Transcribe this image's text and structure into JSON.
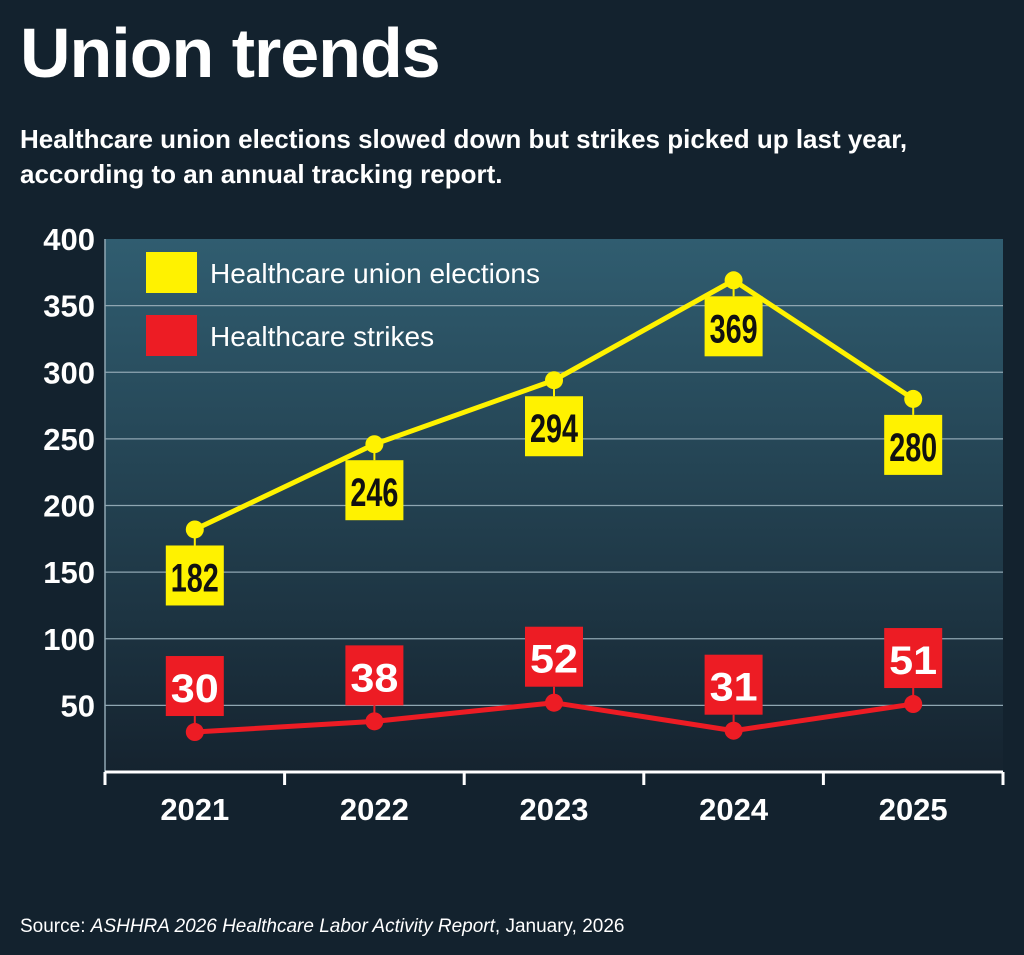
{
  "title": "Union trends",
  "subtitle": "Healthcare union elections slowed down but strikes picked up last year, according to an annual tracking report.",
  "source": {
    "prefix": "Source: ",
    "report": "ASHHRA 2026 Healthcare Labor Activity Report",
    "suffix": ", January, 2026"
  },
  "chart_data": {
    "type": "line",
    "title": "Union trends",
    "categories": [
      "2021",
      "2022",
      "2023",
      "2024",
      "2025"
    ],
    "ylim": [
      0,
      400
    ],
    "yticks": [
      50,
      100,
      150,
      200,
      250,
      300,
      350,
      400
    ],
    "grid": true,
    "legend_position": "top-left",
    "series": [
      {
        "name": "Healthcare union elections",
        "values": [
          182,
          246,
          294,
          369,
          280
        ],
        "color": "#fff200",
        "label_position": "below"
      },
      {
        "name": "Healthcare strikes",
        "values": [
          30,
          38,
          52,
          31,
          51
        ],
        "color": "#ed1c24",
        "label_position": "above"
      }
    ]
  },
  "colors": {
    "background": "#13222e",
    "plot_top": "#305d70",
    "plot_bottom": "#15232f"
  }
}
